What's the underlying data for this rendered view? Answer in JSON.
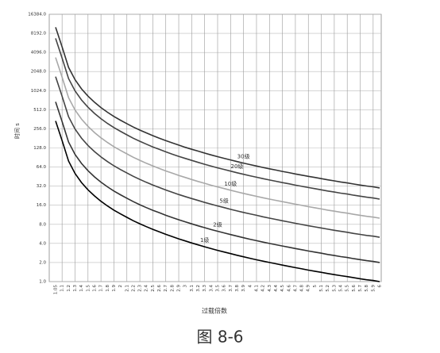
{
  "chart_data": {
    "type": "line",
    "ylabel": "时间 s",
    "xlabel": "过载倍数",
    "caption": "图 8-6",
    "log_scale_y": 2,
    "grid": true,
    "categories": [
      "1.05",
      "1.1",
      "1.2",
      "1.3",
      "1.4",
      "1.5",
      "1.6",
      "1.7",
      "1.8",
      "1.9",
      "2",
      "2.1",
      "2.2",
      "2.3",
      "2.4",
      "2.5",
      "2.6",
      "2.7",
      "2.8",
      "2.9",
      "3",
      "3.1",
      "3.2",
      "3.3",
      "3.4",
      "3.5",
      "3.6",
      "3.7",
      "3.8",
      "3.9",
      "4",
      "4.1",
      "4.2",
      "4.3",
      "4.4",
      "4.5",
      "4.6",
      "4.7",
      "4.8",
      "4.9",
      "5",
      "5.1",
      "5.2",
      "5.3",
      "5.4",
      "5.5",
      "5.6",
      "5.7",
      "5.8",
      "5.9",
      "6"
    ],
    "ylim": [
      1,
      16384
    ],
    "yticks": [
      {
        "value": 1,
        "label": "1.0"
      },
      {
        "value": 2,
        "label": "2.0"
      },
      {
        "value": 4,
        "label": "4.0"
      },
      {
        "value": 8,
        "label": "8.0"
      },
      {
        "value": 16,
        "label": "16.0"
      },
      {
        "value": 32,
        "label": "32.0"
      },
      {
        "value": 64,
        "label": "64.0"
      },
      {
        "value": 128,
        "label": "128.0"
      },
      {
        "value": 256,
        "label": "256.0"
      },
      {
        "value": 512,
        "label": "512.0"
      },
      {
        "value": 1024,
        "label": "1024.0"
      },
      {
        "value": 2048,
        "label": "2048.0"
      },
      {
        "value": 4096,
        "label": "4096.0"
      },
      {
        "value": 8192,
        "label": "8192.0"
      },
      {
        "value": 16384,
        "label": "16384.0"
      }
    ],
    "series": [
      {
        "name": "1级",
        "color": "#000000",
        "values": [
          341,
          167,
          79.5,
          50.7,
          36.5,
          28,
          22.4,
          18.5,
          15.6,
          13.4,
          11.7,
          10.3,
          9.11,
          8.16,
          7.35,
          6.67,
          6.08,
          5.56,
          5.12,
          4.72,
          4.38,
          4.07,
          3.79,
          3.54,
          3.31,
          3.11,
          2.93,
          2.76,
          2.6,
          2.46,
          2.33,
          2.21,
          2.1,
          2,
          1.91,
          1.82,
          1.74,
          1.66,
          1.59,
          1.52,
          1.46,
          1.4,
          1.34,
          1.29,
          1.24,
          1.2,
          1.15,
          1.11,
          1.07,
          1.04,
          1
        ]
      },
      {
        "name": "2级",
        "color": "#333333",
        "values": [
          682,
          334,
          159,
          101,
          73,
          56,
          44.8,
          37,
          31.2,
          26.8,
          23.4,
          20.6,
          18.2,
          16.3,
          14.7,
          13.3,
          12.2,
          11.1,
          10.2,
          9.44,
          8.76,
          8.14,
          7.58,
          7.08,
          6.62,
          6.22,
          5.86,
          5.52,
          5.2,
          4.92,
          4.66,
          4.42,
          4.2,
          4,
          3.82,
          3.64,
          3.48,
          3.32,
          3.18,
          3.04,
          2.92,
          2.8,
          2.68,
          2.58,
          2.48,
          2.4,
          2.3,
          2.22,
          2.14,
          2.08,
          2
        ]
      },
      {
        "name": "5级",
        "color": "#444444",
        "values": [
          1705,
          835,
          398,
          254,
          183,
          140,
          112,
          92.5,
          78,
          67,
          58.5,
          51.5,
          45.6,
          40.8,
          36.8,
          33.4,
          30.4,
          27.8,
          25.6,
          23.6,
          21.9,
          20.4,
          19,
          17.7,
          16.6,
          15.6,
          14.7,
          13.8,
          13,
          12.3,
          11.7,
          11.1,
          10.5,
          10,
          9.55,
          9.1,
          8.7,
          8.3,
          7.95,
          7.6,
          7.3,
          7,
          6.7,
          6.45,
          6.2,
          6,
          5.75,
          5.55,
          5.35,
          5.2,
          5
        ]
      },
      {
        "name": "10级",
        "color": "#a8a8a8",
        "values": [
          3410,
          1670,
          795,
          507,
          365,
          280,
          224,
          185,
          156,
          134,
          117,
          103,
          91.1,
          81.6,
          73.5,
          66.7,
          60.8,
          55.6,
          51.2,
          47.2,
          43.8,
          40.7,
          37.9,
          35.4,
          33.1,
          31.1,
          29.3,
          27.6,
          26,
          24.6,
          23.3,
          22.1,
          21,
          20,
          19.1,
          18.2,
          17.4,
          16.6,
          15.9,
          15.2,
          14.6,
          14,
          13.4,
          12.9,
          12.4,
          12,
          11.5,
          11.1,
          10.7,
          10.4,
          10
        ]
      },
      {
        "name": "20级",
        "color": "#444444",
        "values": [
          6820,
          3340,
          1590,
          1014,
          730,
          560,
          448,
          370,
          312,
          268,
          234,
          206,
          182,
          163,
          147,
          133,
          122,
          111,
          102,
          94.4,
          87.6,
          81.4,
          75.8,
          70.8,
          66.2,
          62.2,
          58.6,
          55.2,
          52,
          49.2,
          46.6,
          44.2,
          42,
          40,
          38.2,
          36.4,
          34.8,
          33.2,
          31.8,
          30.4,
          29.2,
          28,
          26.8,
          25.8,
          24.8,
          24,
          23,
          22.2,
          21.4,
          20.8,
          20
        ]
      },
      {
        "name": "30级",
        "color": "#333333",
        "values": [
          10230,
          5010,
          2385,
          1521,
          1095,
          840,
          672,
          555,
          468,
          402,
          351,
          309,
          273,
          245,
          221,
          200,
          182,
          167,
          154,
          142,
          131,
          122,
          114,
          106,
          99.3,
          93.3,
          87.9,
          82.8,
          78,
          73.8,
          69.9,
          66.3,
          63,
          60,
          57.3,
          54.6,
          52.2,
          49.8,
          47.7,
          45.6,
          43.8,
          42,
          40.2,
          38.7,
          37.2,
          36,
          34.5,
          33.3,
          32.1,
          31.2,
          30
        ]
      }
    ]
  }
}
